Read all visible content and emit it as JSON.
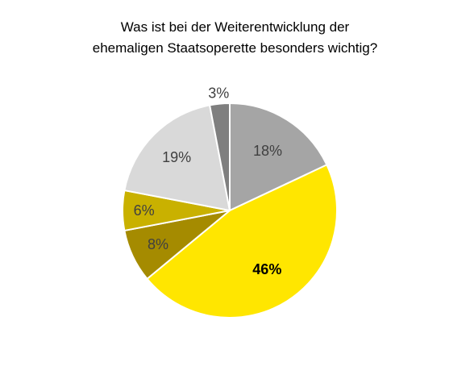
{
  "chart_data": {
    "type": "pie",
    "title": [
      "Was ist bei der Weiterentwicklung der",
      "ehemaligen Staatsoperette besonders wichtig?"
    ],
    "start_angle_deg": 0,
    "direction": "clockwise",
    "slices": [
      {
        "value": 18,
        "label": "18%",
        "color": "#a5a5a5",
        "label_color": "#404040",
        "label_bold": false
      },
      {
        "value": 46,
        "label": "46%",
        "color": "#ffe600",
        "label_color": "#000000",
        "label_bold": true
      },
      {
        "value": 8,
        "label": "8%",
        "color": "#a58b00",
        "label_color": "#404040",
        "label_bold": false
      },
      {
        "value": 6,
        "label": "6%",
        "color": "#c9b100",
        "label_color": "#404040",
        "label_bold": false
      },
      {
        "value": 19,
        "label": "19%",
        "color": "#d9d9d9",
        "label_color": "#404040",
        "label_bold": false
      },
      {
        "value": 3,
        "label": "3%",
        "color": "#7f7f7f",
        "label_color": "#404040",
        "label_bold": false
      }
    ]
  }
}
